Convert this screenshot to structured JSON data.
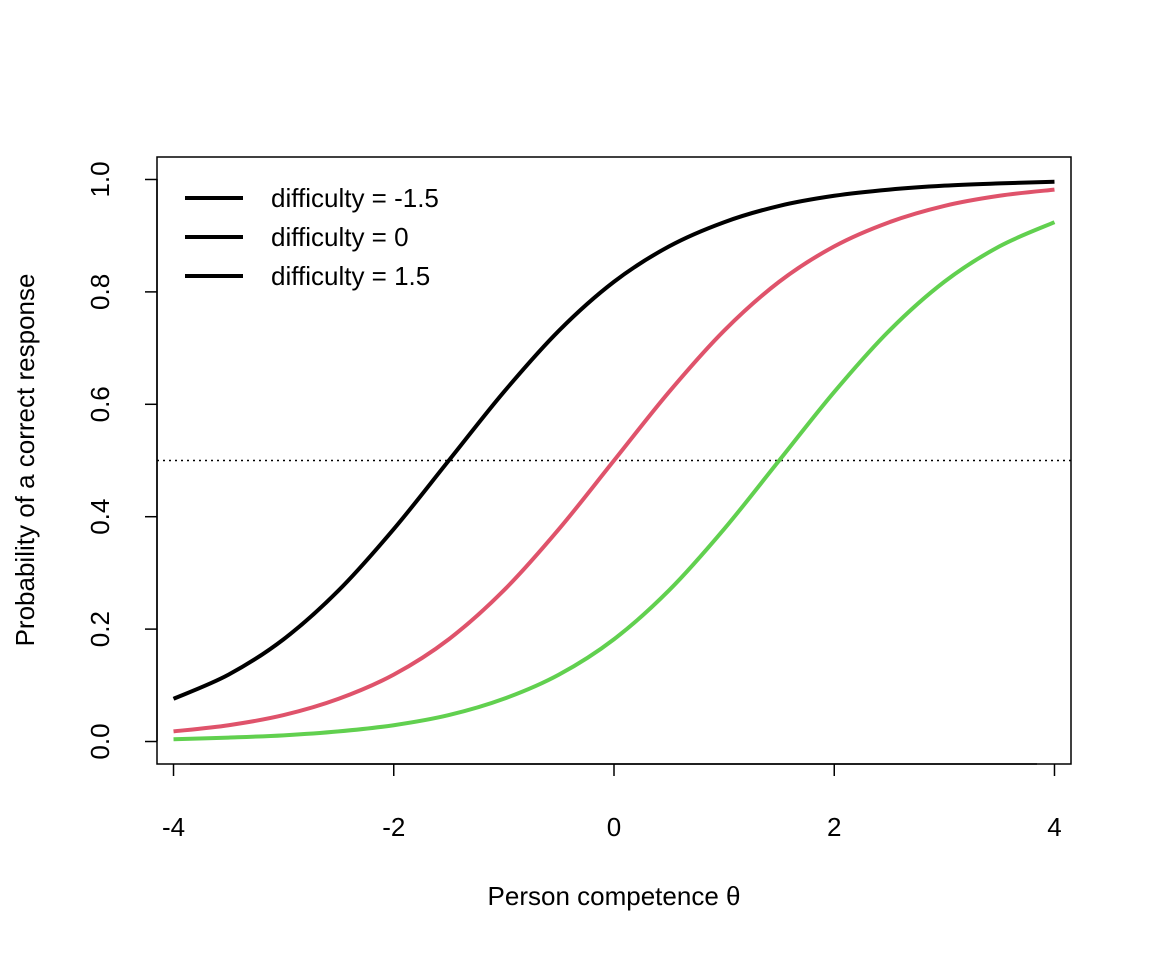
{
  "chart_data": {
    "type": "line",
    "title": "",
    "xlabel": "Person competence θ",
    "ylabel": "Probability of a correct response",
    "xlim": [
      -4.15,
      4.15
    ],
    "ylim": [
      -0.04,
      1.04
    ],
    "xticks": [
      -4,
      -2,
      0,
      2,
      4
    ],
    "xtick_labels": [
      "-4",
      "-2",
      "0",
      "2",
      "4"
    ],
    "yticks": [
      0.0,
      0.2,
      0.4,
      0.6,
      0.8,
      1.0
    ],
    "ytick_labels": [
      "0.0",
      "0.2",
      "0.4",
      "0.6",
      "0.8",
      "1.0"
    ],
    "grid": false,
    "legend_position": "top-left",
    "reference_line": {
      "y": 0.5,
      "style": "dotted",
      "color": "#000000"
    },
    "x": [
      -4,
      -3.5,
      -3,
      -2.5,
      -2,
      -1.5,
      -1,
      -0.5,
      0,
      0.5,
      1,
      1.5,
      2,
      2.5,
      3,
      3.5,
      4
    ],
    "series": [
      {
        "name": "difficulty = -1.5",
        "legend_line_color": "#000000",
        "color": "#000000",
        "values": [
          0.076,
          0.119,
          0.182,
          0.269,
          0.378,
          0.5,
          0.622,
          0.731,
          0.818,
          0.881,
          0.924,
          0.953,
          0.971,
          0.982,
          0.989,
          0.993,
          0.996
        ]
      },
      {
        "name": "difficulty = 0",
        "legend_line_color": "#000000",
        "color": "#DF536B",
        "values": [
          0.018,
          0.029,
          0.047,
          0.076,
          0.119,
          0.182,
          0.269,
          0.378,
          0.5,
          0.622,
          0.731,
          0.818,
          0.881,
          0.924,
          0.953,
          0.971,
          0.982
        ]
      },
      {
        "name": "difficulty = 1.5",
        "legend_line_color": "#000000",
        "color": "#61D04F",
        "values": [
          0.004,
          0.007,
          0.011,
          0.018,
          0.029,
          0.047,
          0.076,
          0.119,
          0.182,
          0.269,
          0.378,
          0.5,
          0.622,
          0.731,
          0.818,
          0.881,
          0.924
        ]
      }
    ]
  }
}
